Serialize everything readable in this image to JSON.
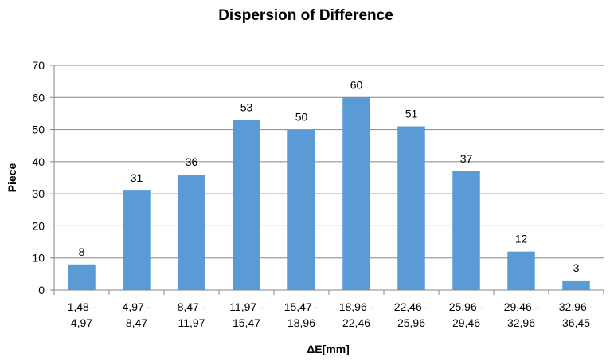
{
  "chart_data": {
    "type": "bar",
    "title": "Dispersion of Difference",
    "xlabel": "ΔE[mm]",
    "ylabel": "Piece",
    "ylim": [
      0,
      70
    ],
    "yticks": [
      0,
      10,
      20,
      30,
      40,
      50,
      60,
      70
    ],
    "grid": true,
    "legend": "none",
    "bar_color": "#5b9bd5",
    "categories": [
      [
        "1,48 -",
        "4,97"
      ],
      [
        "4,97 -",
        "8,47"
      ],
      [
        "8,47 -",
        "11,97"
      ],
      [
        "11,97 -",
        "15,47"
      ],
      [
        "15,47 -",
        "18,96"
      ],
      [
        "18,96 -",
        "22,46"
      ],
      [
        "22,46 -",
        "25,96"
      ],
      [
        "25,96 -",
        "29,46"
      ],
      [
        "29,46 -",
        "32,96"
      ],
      [
        "32,96 -",
        "36,45"
      ]
    ],
    "values": [
      8,
      31,
      36,
      53,
      50,
      60,
      51,
      37,
      12,
      3
    ]
  }
}
